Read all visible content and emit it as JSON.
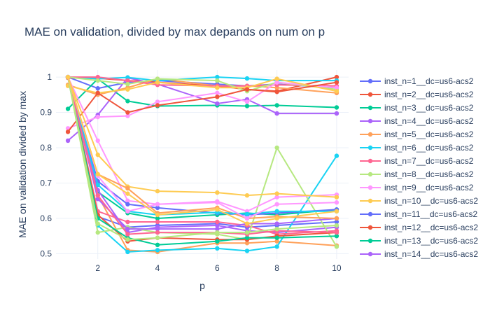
{
  "chart_data": {
    "type": "line",
    "title": "MAE on validation, divided by max depands on num on p",
    "xlabel": "p",
    "ylabel": "MAE on validation divided by max",
    "xlim": [
      0.6,
      10.4
    ],
    "ylim": [
      0.485,
      1.02
    ],
    "xticks": [
      2,
      4,
      6,
      8,
      10
    ],
    "yticks": [
      0.5,
      0.6,
      0.7,
      0.8,
      0.9,
      1
    ],
    "ytick_labels": [
      "0.5",
      "0.6",
      "0.7",
      "0.8",
      "0.9",
      "1"
    ],
    "grid": true,
    "legend_position": "right",
    "x": [
      1,
      2,
      3,
      4,
      6,
      7,
      8,
      10
    ],
    "series": [
      {
        "name": "inst_n=1__dc=us6-acs2",
        "color": "#636efa",
        "values": [
          1.0,
          0.968,
          0.985,
          0.99,
          0.98,
          0.975,
          0.98,
          0.97
        ]
      },
      {
        "name": "inst_n=2__dc=us6-acs2",
        "color": "#ef553b",
        "values": [
          0.998,
          0.997,
          0.99,
          0.985,
          0.975,
          0.965,
          0.96,
          1.0
        ]
      },
      {
        "name": "inst_n=3__dc=us6-acs2",
        "color": "#00cc96",
        "values": [
          0.91,
          0.995,
          0.932,
          0.918,
          0.92,
          0.918,
          0.92,
          0.914
        ]
      },
      {
        "name": "inst_n=4__dc=us6-acs2",
        "color": "#ab63fa",
        "values": [
          0.82,
          0.893,
          0.998,
          0.98,
          0.925,
          0.937,
          0.897,
          0.897
        ]
      },
      {
        "name": "inst_n=5__dc=us6-acs2",
        "color": "#ffa15a",
        "values": [
          0.978,
          0.95,
          0.97,
          0.995,
          0.975,
          0.975,
          0.97,
          0.955
        ]
      },
      {
        "name": "inst_n=6__dc=us6-acs2",
        "color": "#19d3f3",
        "values": [
          1.0,
          0.995,
          0.999,
          0.99,
          1.0,
          0.996,
          0.99,
          0.99
        ]
      },
      {
        "name": "inst_n=7__dc=us6-acs2",
        "color": "#ff6692",
        "values": [
          1.0,
          1.0,
          0.99,
          0.978,
          0.975,
          0.975,
          0.978,
          0.975
        ]
      },
      {
        "name": "inst_n=8__dc=us6-acs2",
        "color": "#b6e880",
        "values": [
          1.0,
          0.99,
          0.98,
          0.995,
          0.99,
          0.96,
          0.985,
          0.965
        ]
      },
      {
        "name": "inst_n=9__dc=us6-acs2",
        "color": "#ff97ff",
        "values": [
          0.855,
          0.887,
          0.89,
          0.93,
          0.955,
          0.93,
          0.985,
          0.97
        ]
      },
      {
        "name": "inst_n=10__dc=us6-acs2",
        "color": "#fecb52",
        "values": [
          0.975,
          0.955,
          0.965,
          0.985,
          0.97,
          0.97,
          0.995,
          0.96
        ]
      },
      {
        "name": "inst_n=11__dc=us6-acs2",
        "color": "#636efa",
        "values": [
          1.0,
          0.605,
          0.575,
          0.58,
          0.585,
          0.575,
          0.58,
          0.59
        ]
      },
      {
        "name": "inst_n=12__dc=us6-acs2",
        "color": "#ef553b",
        "values": [
          0.845,
          0.955,
          0.9,
          0.92,
          0.944,
          0.965,
          0.958,
          0.985
        ]
      },
      {
        "name": "inst_n=13__dc=us6-acs2",
        "color": "#00cc96",
        "values": [
          1.0,
          0.675,
          0.615,
          0.6,
          0.61,
          0.615,
          0.61,
          0.625
        ]
      },
      {
        "name": "inst_n=14__dc=us6-acs2",
        "color": "#ab63fa",
        "values": [
          1.0,
          0.68,
          0.56,
          0.575,
          0.58,
          0.565,
          0.56,
          0.575
        ]
      },
      {
        "name": "",
        "color": "#ffa15a",
        "values": [
          1.0,
          0.665,
          0.51,
          0.505,
          0.53,
          0.53,
          0.535,
          0.523
        ]
      },
      {
        "name": "",
        "color": "#19d3f3",
        "values": [
          1.0,
          0.58,
          0.505,
          0.51,
          0.515,
          0.508,
          0.52,
          0.777
        ]
      },
      {
        "name": "",
        "color": "#ff6692",
        "values": [
          1.0,
          0.62,
          0.59,
          0.59,
          0.59,
          0.58,
          0.555,
          0.565
        ]
      },
      {
        "name": "",
        "color": "#b6e880",
        "values": [
          1.0,
          0.56,
          0.575,
          0.56,
          0.555,
          0.54,
          0.8,
          0.52
        ]
      },
      {
        "name": "",
        "color": "#ff97ff",
        "values": [
          1.0,
          0.82,
          0.65,
          0.64,
          0.648,
          0.62,
          0.66,
          0.667
        ]
      },
      {
        "name": "",
        "color": "#fecb52",
        "values": [
          1.0,
          0.78,
          0.69,
          0.677,
          0.673,
          0.665,
          0.67,
          0.66
        ]
      },
      {
        "name": "",
        "color": "#636efa",
        "values": [
          1.0,
          0.705,
          0.64,
          0.63,
          0.615,
          0.61,
          0.615,
          0.625
        ]
      },
      {
        "name": "",
        "color": "#ef553b",
        "values": [
          1.0,
          0.61,
          0.535,
          0.545,
          0.54,
          0.54,
          0.55,
          0.56
        ]
      },
      {
        "name": "",
        "color": "#00cc96",
        "values": [
          1.0,
          0.6,
          0.545,
          0.525,
          0.535,
          0.545,
          0.545,
          0.55
        ]
      },
      {
        "name": "",
        "color": "#ab63fa",
        "values": [
          1.0,
          0.655,
          0.57,
          0.57,
          0.57,
          0.585,
          0.585,
          0.6
        ]
      },
      {
        "name": "",
        "color": "#ffa15a",
        "values": [
          1.0,
          0.725,
          0.685,
          0.615,
          0.63,
          0.6,
          0.605,
          0.6
        ]
      },
      {
        "name": "",
        "color": "#19d3f3",
        "values": [
          1.0,
          0.695,
          0.62,
          0.61,
          0.617,
          0.612,
          0.62,
          0.62
        ]
      },
      {
        "name": "",
        "color": "#ff6692",
        "values": [
          1.0,
          0.665,
          0.555,
          0.56,
          0.56,
          0.555,
          0.565,
          0.56
        ]
      },
      {
        "name": "",
        "color": "#b6e880",
        "values": [
          1.0,
          0.585,
          0.54,
          0.545,
          0.56,
          0.56,
          0.57,
          0.58
        ]
      },
      {
        "name": "",
        "color": "#ff97ff",
        "values": [
          1.0,
          0.72,
          0.62,
          0.64,
          0.645,
          0.6,
          0.64,
          0.645
        ]
      },
      {
        "name": "",
        "color": "#fecb52",
        "values": [
          1.0,
          0.725,
          0.67,
          0.61,
          0.625,
          0.585,
          0.6,
          0.62
        ]
      }
    ]
  }
}
